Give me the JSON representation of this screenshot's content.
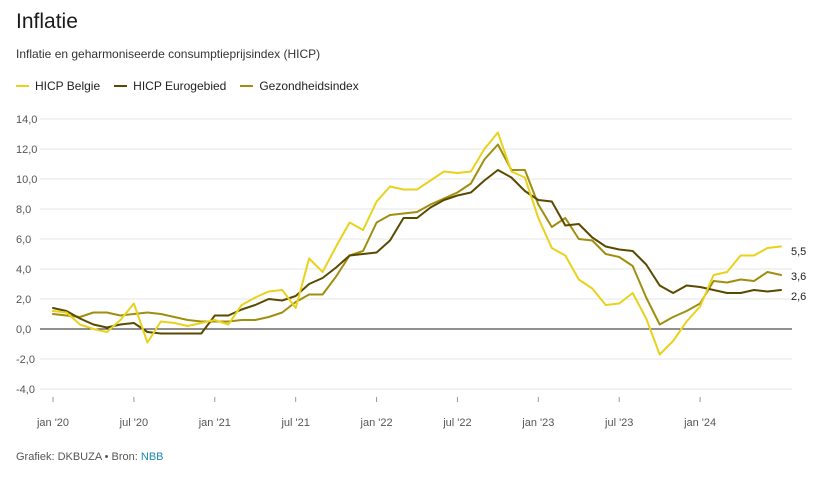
{
  "header": {
    "title": "Inflatie",
    "subtitle": "Inflatie en geharmoniseerde consumptieprijsindex (HICP)"
  },
  "footer": {
    "prefix": "Grafiek: DKBUZA • Bron: ",
    "source_link": "NBB"
  },
  "colors": {
    "hicp_belgie": "#e8d21d",
    "hicp_eurogebied": "#5a4a00",
    "gezondheidsindex": "#a08e10",
    "zero_line": "#222222",
    "grid": "#e6e6e6"
  },
  "chart_data": {
    "type": "line",
    "title": "Inflatie",
    "subtitle": "Inflatie en geharmoniseerde consumptieprijsindex (HICP)",
    "xlabel": "",
    "ylabel": "",
    "ylim": [
      -4,
      14
    ],
    "yticks": [
      "-4,0",
      "-2,0",
      "0,0",
      "2,0",
      "4,0",
      "6,0",
      "8,0",
      "10,0",
      "12,0",
      "14,0"
    ],
    "ytick_values": [
      -4,
      -2,
      0,
      2,
      4,
      6,
      8,
      10,
      12,
      14
    ],
    "xticks": [
      {
        "label": "jan '20",
        "month_index": 0
      },
      {
        "label": "jul '20",
        "month_index": 6
      },
      {
        "label": "jan '21",
        "month_index": 12
      },
      {
        "label": "jul '21",
        "month_index": 18
      },
      {
        "label": "jan '22",
        "month_index": 24
      },
      {
        "label": "jul '22",
        "month_index": 30
      },
      {
        "label": "jan '23",
        "month_index": 36
      },
      {
        "label": "jul '23",
        "month_index": 42
      },
      {
        "label": "jan '24",
        "month_index": 48
      }
    ],
    "x_start": "2020-01",
    "x_end": "2024-07",
    "grid": true,
    "legend_position": "top-left",
    "series": [
      {
        "name": "HICP Belgie",
        "color": "#e8d21d",
        "end_label": "5,5",
        "values": [
          1.2,
          1.1,
          0.3,
          0.0,
          -0.2,
          0.6,
          1.7,
          -0.9,
          0.5,
          0.4,
          0.2,
          0.4,
          0.6,
          0.3,
          1.6,
          2.1,
          2.5,
          2.6,
          1.4,
          4.7,
          3.8,
          5.5,
          7.1,
          6.6,
          8.5,
          9.5,
          9.3,
          9.3,
          9.9,
          10.5,
          10.4,
          10.5,
          12.0,
          13.1,
          10.5,
          10.1,
          7.4,
          5.4,
          4.9,
          3.3,
          2.7,
          1.6,
          1.7,
          2.4,
          0.7,
          -1.7,
          -0.8,
          0.5,
          1.5,
          3.6,
          3.8,
          4.9,
          4.9,
          5.4,
          5.5
        ]
      },
      {
        "name": "HICP Eurogebied",
        "color": "#5a4a00",
        "end_label": "2,6",
        "values": [
          1.4,
          1.2,
          0.7,
          0.3,
          0.1,
          0.3,
          0.4,
          -0.2,
          -0.3,
          -0.3,
          -0.3,
          -0.3,
          0.9,
          0.9,
          1.3,
          1.6,
          2.0,
          1.9,
          2.2,
          3.0,
          3.4,
          4.1,
          4.9,
          5.0,
          5.1,
          5.9,
          7.4,
          7.4,
          8.1,
          8.6,
          8.9,
          9.1,
          9.9,
          10.6,
          10.1,
          9.2,
          8.6,
          8.5,
          6.9,
          7.0,
          6.1,
          5.5,
          5.3,
          5.2,
          4.3,
          2.9,
          2.4,
          2.9,
          2.8,
          2.6,
          2.4,
          2.4,
          2.6,
          2.5,
          2.6
        ]
      },
      {
        "name": "Gezondheidsindex",
        "color": "#a08e10",
        "end_label": "3,6",
        "values": [
          1.0,
          0.9,
          0.8,
          1.1,
          1.1,
          0.9,
          1.0,
          1.1,
          1.0,
          0.8,
          0.6,
          0.5,
          0.5,
          0.5,
          0.6,
          0.6,
          0.8,
          1.1,
          1.8,
          2.3,
          2.3,
          3.5,
          4.9,
          5.2,
          7.1,
          7.6,
          7.7,
          7.8,
          8.3,
          8.7,
          9.1,
          9.7,
          11.3,
          12.3,
          10.6,
          10.6,
          8.3,
          6.8,
          7.4,
          6.0,
          5.9,
          5.0,
          4.8,
          4.2,
          2.1,
          0.3,
          0.8,
          1.2,
          1.7,
          3.2,
          3.1,
          3.3,
          3.2,
          3.8,
          3.6
        ]
      }
    ]
  }
}
